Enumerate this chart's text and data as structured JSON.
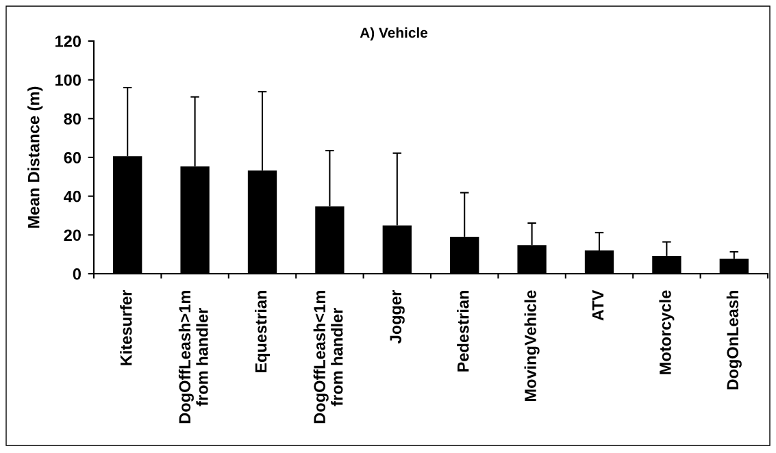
{
  "chart_data": {
    "type": "bar",
    "title": "A) Vehicle",
    "ylabel": "Mean Distance (m)",
    "categories": [
      "Kitesurfer",
      "DogOffLeash>1m\nfrom handler",
      "Equestrian",
      "DogOffLeash<1m\nfrom handler",
      "Jogger",
      "Pedestrian",
      "MovingVehicle",
      "ATV",
      "Motorcycle",
      "DogOnLeash"
    ],
    "values": [
      60.6,
      55.3,
      53.2,
      34.8,
      24.9,
      19.1,
      14.7,
      12.0,
      9.2,
      7.8
    ],
    "errors": [
      [
        60.6,
        96.0
      ],
      [
        55.3,
        91.2
      ],
      [
        53.2,
        93.9
      ],
      [
        34.8,
        63.5
      ],
      [
        24.9,
        62.2
      ],
      [
        19.1,
        41.8
      ],
      [
        14.7,
        26.1
      ],
      [
        12.0,
        21.2
      ],
      [
        9.2,
        16.4
      ],
      [
        7.8,
        11.3
      ]
    ],
    "color": "#000000",
    "ylim": [
      0,
      120
    ],
    "yticks": [
      0,
      20,
      40,
      60,
      80,
      100,
      120
    ]
  }
}
